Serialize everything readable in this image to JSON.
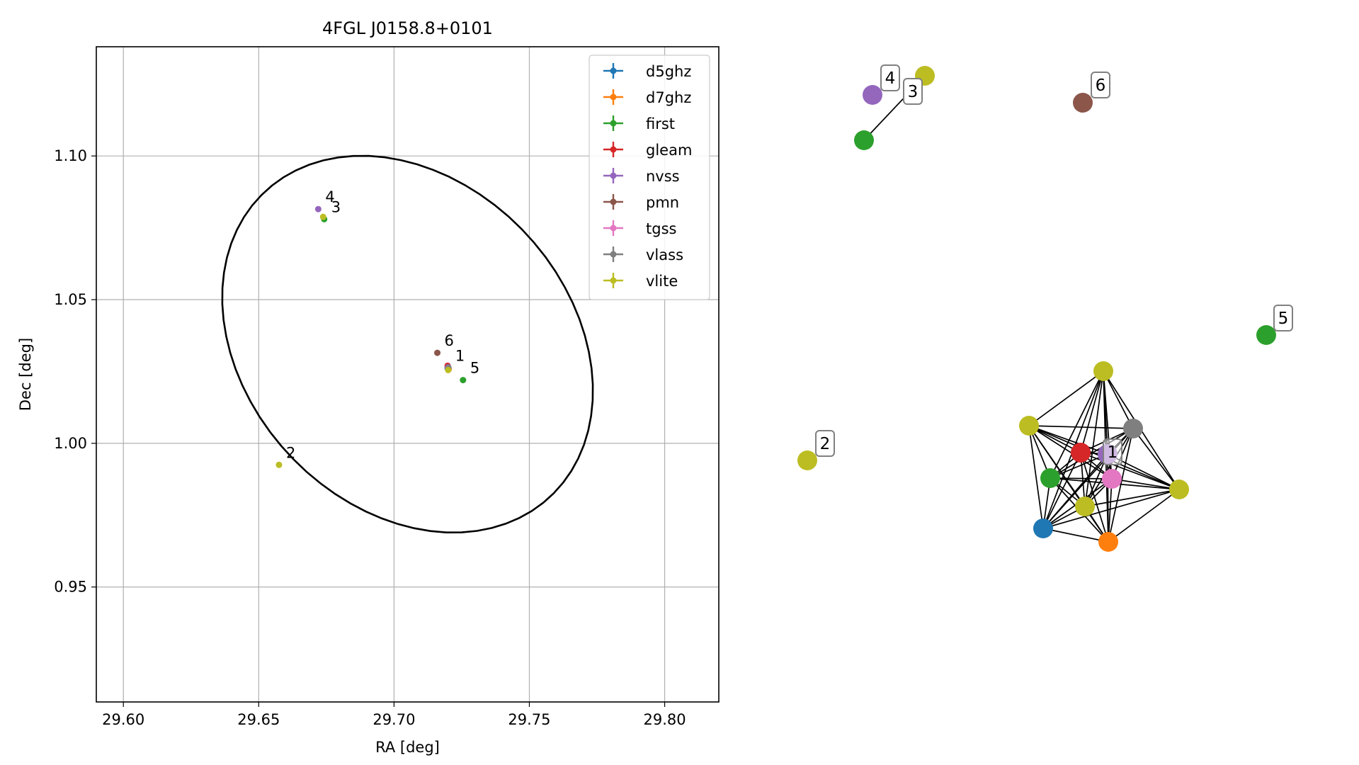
{
  "chart_data": [
    {
      "type": "scatter",
      "title": "4FGL J0158.8+0101",
      "xlabel": "RA [deg]",
      "ylabel": "Dec [deg]",
      "xlim": [
        29.59,
        29.82
      ],
      "ylim": [
        0.91,
        1.138
      ],
      "xticks": [
        29.6,
        29.65,
        29.7,
        29.75,
        29.8
      ],
      "xtick_labels": [
        "29.60",
        "29.65",
        "29.70",
        "29.75",
        "29.80"
      ],
      "yticks": [
        0.95,
        1.0,
        1.05,
        1.1
      ],
      "ytick_labels": [
        "0.95",
        "1.00",
        "1.05",
        "1.10"
      ],
      "grid": true,
      "legend_position": "top-right",
      "ellipse": {
        "center": [
          29.705,
          1.0345
        ],
        "semi_axes": [
          0.075,
          0.058
        ],
        "angle_deg": -40,
        "color": "#000000"
      },
      "series": [
        {
          "name": "d5ghz",
          "color": "#1f77b4",
          "points": [
            {
              "x": 29.7198,
              "y": 1.0262
            }
          ]
        },
        {
          "name": "d7ghz",
          "color": "#ff7f0e",
          "points": [
            {
              "x": 29.7202,
              "y": 1.0258
            }
          ]
        },
        {
          "name": "first",
          "color": "#2ca02c",
          "points": [
            {
              "x": 29.72,
              "y": 1.026
            },
            {
              "x": 29.6742,
              "y": 1.078
            },
            {
              "x": 29.7255,
              "y": 1.022
            }
          ]
        },
        {
          "name": "gleam",
          "color": "#d62728",
          "points": [
            {
              "x": 29.7198,
              "y": 1.027
            }
          ]
        },
        {
          "name": "nvss",
          "color": "#9467bd",
          "points": [
            {
              "x": 29.72,
              "y": 1.0265
            },
            {
              "x": 29.672,
              "y": 1.0815
            }
          ]
        },
        {
          "name": "pmn",
          "color": "#8c564b",
          "points": [
            {
              "x": 29.716,
              "y": 1.0315
            }
          ]
        },
        {
          "name": "tgss",
          "color": "#e377c2",
          "points": [
            {
              "x": 29.72,
              "y": 1.0262
            }
          ]
        },
        {
          "name": "vlass",
          "color": "#7f7f7f",
          "points": [
            {
              "x": 29.7201,
              "y": 1.0263
            }
          ]
        },
        {
          "name": "vlite",
          "color": "#bcbd22",
          "points": [
            {
              "x": 29.72,
              "y": 1.0255
            },
            {
              "x": 29.6738,
              "y": 1.0788
            },
            {
              "x": 29.6575,
              "y": 0.9925
            }
          ]
        }
      ],
      "annotations": [
        {
          "text": "1",
          "x": 29.72,
          "y": 1.0262
        },
        {
          "text": "2",
          "x": 29.6575,
          "y": 0.9925
        },
        {
          "text": "3",
          "x": 29.6742,
          "y": 1.078
        },
        {
          "text": "4",
          "x": 29.672,
          "y": 1.0815
        },
        {
          "text": "5",
          "x": 29.7255,
          "y": 1.022
        },
        {
          "text": "6",
          "x": 29.716,
          "y": 1.0315
        }
      ]
    },
    {
      "type": "network",
      "groups": [
        {
          "label": "1",
          "nodes": [
            "vlite",
            "vlite",
            "vlite",
            "vlite",
            "vlass",
            "gleam",
            "nvss",
            "first",
            "tgss",
            "d5ghz",
            "d7ghz"
          ]
        },
        {
          "label": "2",
          "nodes": [
            "vlite"
          ]
        },
        {
          "label": "3",
          "nodes": [
            "first",
            "vlite"
          ]
        },
        {
          "label": "4",
          "nodes": [
            "nvss"
          ]
        },
        {
          "label": "5",
          "nodes": [
            "first"
          ]
        },
        {
          "label": "6",
          "nodes": [
            "pmn"
          ]
        }
      ]
    }
  ]
}
